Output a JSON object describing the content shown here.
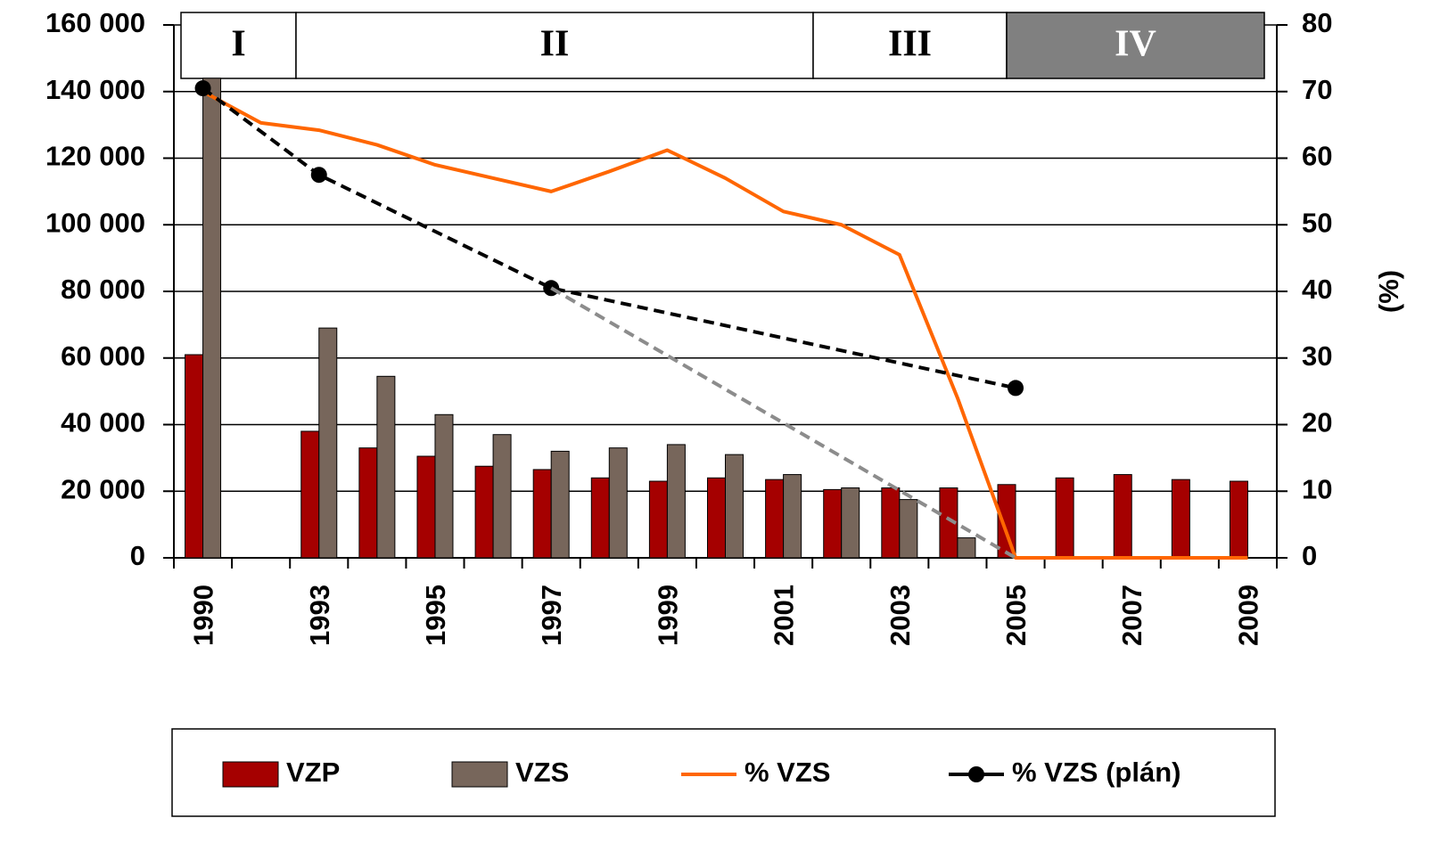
{
  "chart_data": {
    "type": "bar_line",
    "categories": [
      "1990",
      null,
      "1993",
      null,
      "1995",
      null,
      "1997",
      null,
      "1999",
      null,
      "2001",
      null,
      "2003",
      null,
      "2005",
      null,
      "2007",
      null,
      "2009"
    ],
    "series": [
      {
        "name": "VZP",
        "kind": "bar",
        "axis": "y",
        "color": "#a50000",
        "values": [
          61000,
          null,
          38000,
          33000,
          30500,
          27500,
          26500,
          24000,
          23000,
          24000,
          23500,
          20500,
          21000,
          21000,
          22000,
          24000,
          25000,
          23500,
          23000
        ]
      },
      {
        "name": "VZS",
        "kind": "bar",
        "axis": "y",
        "color": "#77665b",
        "values": [
          144000,
          null,
          69000,
          54500,
          43000,
          37000,
          32000,
          33000,
          34000,
          31000,
          25000,
          21000,
          17500,
          6000,
          null,
          null,
          null,
          null,
          null
        ]
      },
      {
        "name": "% VZS",
        "kind": "line",
        "axis": "y2",
        "color": "#ff6600",
        "values": [
          70,
          65.3,
          64.2,
          62,
          59,
          57,
          55,
          58,
          61.2,
          57,
          52,
          50,
          45.5,
          24,
          0,
          0,
          0,
          0,
          0
        ]
      },
      {
        "name": "% VZS (plán)",
        "kind": "line",
        "axis": "y2",
        "color": "#000000",
        "dashed": true,
        "markers": true,
        "connect_gaps": true,
        "values": [
          70.5,
          null,
          57.5,
          null,
          null,
          null,
          40.5,
          null,
          null,
          null,
          null,
          null,
          null,
          null,
          25.5,
          null,
          null,
          null,
          null
        ]
      },
      {
        "kind": "line",
        "axis": "y2",
        "color": "#8c8c8c",
        "dashed": true,
        "connect_gaps": true,
        "values": [
          null,
          null,
          null,
          null,
          null,
          null,
          40.5,
          null,
          null,
          null,
          null,
          null,
          null,
          null,
          0,
          null,
          null,
          null,
          null
        ]
      }
    ],
    "ylim": [
      0,
      160000
    ],
    "yticks": [
      0,
      {
        "value": 20000,
        "label": "20 000"
      },
      {
        "value": 40000,
        "label": "40 000"
      },
      {
        "value": 60000,
        "label": "60 000"
      },
      {
        "value": 80000,
        "label": "80 000"
      },
      {
        "value": 100000,
        "label": "100 000"
      },
      {
        "value": 120000,
        "label": "120 000"
      },
      {
        "value": 140000,
        "label": "140 000"
      },
      {
        "value": 160000,
        "label": "160 000"
      }
    ],
    "y2lim": [
      0,
      80
    ],
    "y2ticks": [
      0,
      10,
      20,
      30,
      40,
      50,
      60,
      70,
      80
    ],
    "y2label": "(%)",
    "grid": true,
    "phases": [
      {
        "label": "I",
        "color": "#ffffff"
      },
      {
        "label": "II",
        "color": "#ffffff"
      },
      {
        "label": "III",
        "color": "#ffffff"
      },
      {
        "label": "IV",
        "color": "#808080"
      }
    ],
    "legend": "bottom"
  }
}
